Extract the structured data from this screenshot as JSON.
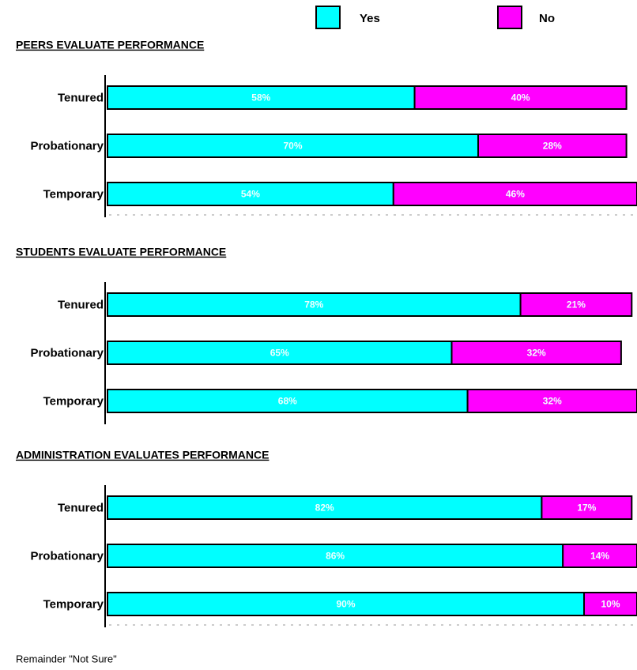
{
  "chart_data": [
    {
      "type": "bar",
      "orientation": "horizontal",
      "stacked": true,
      "title": "PEERS EVALUATE PERFORMANCE",
      "categories": [
        "Tenured",
        "Probationary",
        "Temporary"
      ],
      "series": [
        {
          "name": "Yes",
          "color": "#00ffff",
          "values": [
            58,
            70,
            54
          ],
          "value_labels": [
            "58%",
            "70%",
            "54%"
          ]
        },
        {
          "name": "No",
          "color": "#ff00ff",
          "values": [
            40,
            28,
            46
          ],
          "value_labels": [
            "40%",
            "28%",
            "46%"
          ]
        }
      ],
      "xlim": [
        0,
        100
      ],
      "grid": true
    },
    {
      "type": "bar",
      "orientation": "horizontal",
      "stacked": true,
      "title": "STUDENTS EVALUATE PERFORMANCE",
      "categories": [
        "Tenured",
        "Probationary",
        "Temporary"
      ],
      "series": [
        {
          "color": "#00ffff",
          "values": [
            78,
            65,
            68
          ],
          "value_labels": [
            "78%",
            "65%",
            "68%"
          ]
        },
        {
          "color": "#ff00ff",
          "values": [
            21,
            32,
            32
          ],
          "value_labels": [
            "21%",
            "32%",
            "32%"
          ]
        }
      ],
      "xlim": [
        0,
        100
      ],
      "grid": false
    },
    {
      "type": "bar",
      "orientation": "horizontal",
      "stacked": true,
      "title": "ADMINISTRATION EVALUATES PERFORMANCE",
      "categories": [
        "Tenured",
        "Probationary",
        "Temporary"
      ],
      "series": [
        {
          "color": "#00ffff",
          "values": [
            82,
            86,
            90
          ],
          "value_labels": [
            "82%",
            "86%",
            "90%"
          ]
        },
        {
          "color": "#ff00ff",
          "values": [
            17,
            14,
            10
          ],
          "value_labels": [
            "17%",
            "14%",
            "10%"
          ]
        }
      ],
      "xlim": [
        0,
        100
      ],
      "grid": true
    }
  ],
  "note": "Remainder \"Not Sure\""
}
